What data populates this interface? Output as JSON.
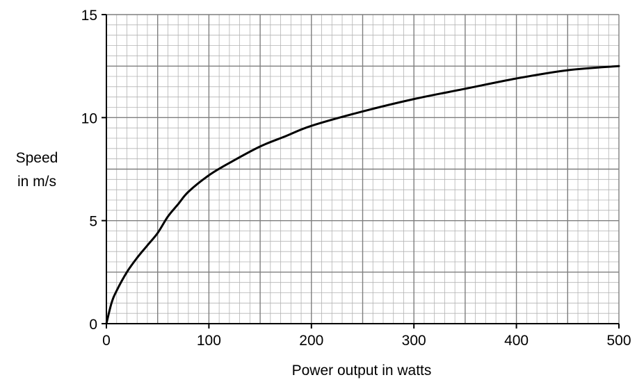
{
  "chart_data": {
    "type": "line",
    "title": "",
    "xlabel": "Power output in watts",
    "ylabel_lines": [
      "Speed",
      "in m/s"
    ],
    "xlim": [
      0,
      500
    ],
    "ylim": [
      0,
      15
    ],
    "x_ticks": [
      0,
      100,
      200,
      300,
      400,
      500
    ],
    "y_ticks": [
      0,
      5,
      10,
      15
    ],
    "x_tick_labels": [
      "0",
      "100",
      "200",
      "300",
      "400",
      "500"
    ],
    "y_tick_labels": [
      "0",
      "5",
      "10",
      "15"
    ],
    "grid": {
      "on": true,
      "minor_x_step": 10,
      "minor_y_step": 0.5,
      "major_x_step": 50,
      "major_y_step": 2.5
    },
    "legend": "none",
    "colors": {
      "line": "#000000",
      "grid_minor": "#b3b3b3",
      "grid_major": "#7f7f7f",
      "axis": "#000000"
    },
    "series": [
      {
        "values": [
          {
            "x": 0,
            "y": 0
          },
          {
            "x": 5,
            "y": 1.0
          },
          {
            "x": 10,
            "y": 1.6
          },
          {
            "x": 20,
            "y": 2.5
          },
          {
            "x": 30,
            "y": 3.2
          },
          {
            "x": 40,
            "y": 3.8
          },
          {
            "x": 50,
            "y": 4.4
          },
          {
            "x": 60,
            "y": 5.2
          },
          {
            "x": 70,
            "y": 5.8
          },
          {
            "x": 80,
            "y": 6.4
          },
          {
            "x": 100,
            "y": 7.2
          },
          {
            "x": 120,
            "y": 7.8
          },
          {
            "x": 150,
            "y": 8.6
          },
          {
            "x": 175,
            "y": 9.1
          },
          {
            "x": 200,
            "y": 9.6
          },
          {
            "x": 250,
            "y": 10.3
          },
          {
            "x": 300,
            "y": 10.9
          },
          {
            "x": 350,
            "y": 11.4
          },
          {
            "x": 400,
            "y": 11.9
          },
          {
            "x": 450,
            "y": 12.3
          },
          {
            "x": 500,
            "y": 12.5
          }
        ]
      }
    ]
  }
}
